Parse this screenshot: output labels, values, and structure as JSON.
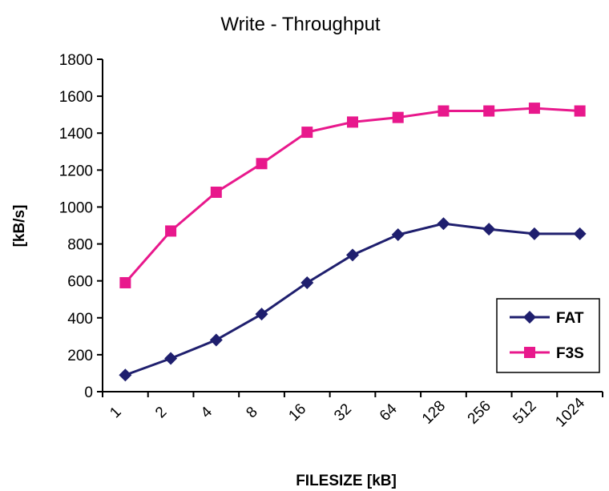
{
  "chart_data": {
    "type": "line",
    "title": "Write - Throughput",
    "xlabel": "FILESIZE [kB]",
    "ylabel": "[kB/s]",
    "categories": [
      "1",
      "2",
      "4",
      "8",
      "16",
      "32",
      "64",
      "128",
      "256",
      "512",
      "1024"
    ],
    "ylim": [
      0,
      1800
    ],
    "yticks": [
      0,
      200,
      400,
      600,
      800,
      1000,
      1200,
      1400,
      1600,
      1800
    ],
    "grid": false,
    "legend_position": "right",
    "series": [
      {
        "name": "FAT",
        "color": "#1f1f6e",
        "marker": "diamond",
        "values": [
          90,
          180,
          280,
          420,
          590,
          740,
          850,
          910,
          880,
          855,
          855
        ]
      },
      {
        "name": "F3S",
        "color": "#e8188c",
        "marker": "square",
        "values": [
          590,
          870,
          1080,
          1235,
          1405,
          1460,
          1485,
          1520,
          1520,
          1535,
          1520
        ]
      }
    ]
  }
}
